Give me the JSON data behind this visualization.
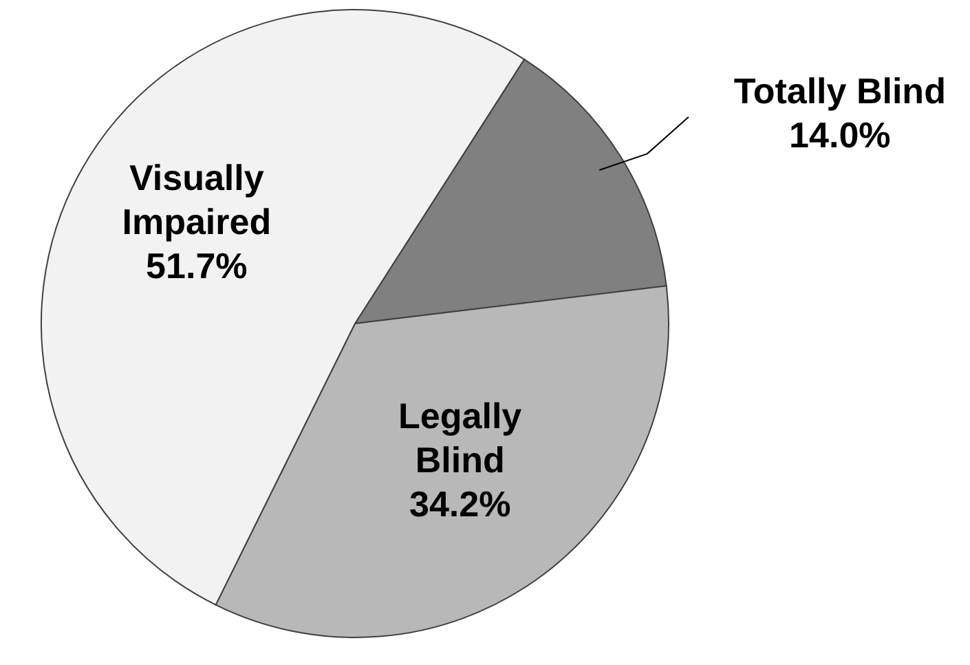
{
  "chart_data": {
    "type": "pie",
    "categories": [
      "Totally Blind",
      "Legally Blind",
      "Visually Impaired"
    ],
    "values": [
      14.0,
      34.2,
      51.7
    ],
    "value_labels": [
      "14.0%",
      "34.2%",
      "51.7%"
    ],
    "colors": [
      "#808080",
      "#b8b8b8",
      "#f2f2f2"
    ]
  }
}
